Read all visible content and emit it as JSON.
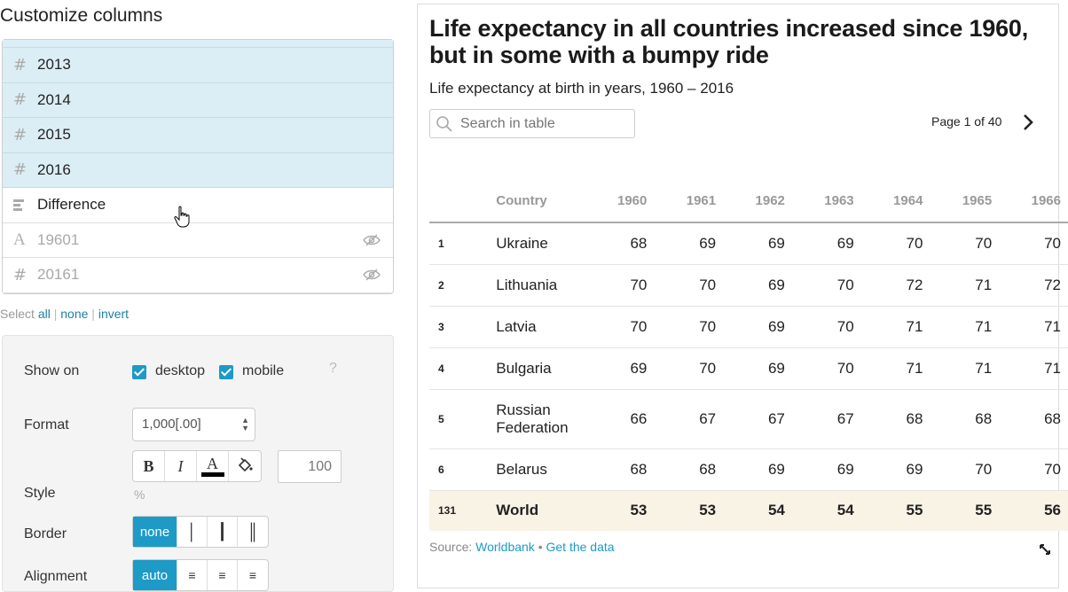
{
  "left_panel": {
    "title": "Customize columns",
    "columns": [
      {
        "icon": "hash-icon",
        "label": "2013",
        "selected": true,
        "hidden": false
      },
      {
        "icon": "hash-icon",
        "label": "2014",
        "selected": true,
        "hidden": false
      },
      {
        "icon": "hash-icon",
        "label": "2015",
        "selected": true,
        "hidden": false
      },
      {
        "icon": "hash-icon",
        "label": "2016",
        "selected": true,
        "hidden": false
      },
      {
        "icon": "bars-icon",
        "label": "Difference",
        "selected": false,
        "hidden": false
      },
      {
        "icon": "text-icon",
        "label": "19601",
        "selected": false,
        "hidden": true
      },
      {
        "icon": "hash-icon",
        "label": "20161",
        "selected": false,
        "hidden": true
      }
    ],
    "select": {
      "prefix": "Select",
      "all": "all",
      "none": "none",
      "invert": "invert",
      "separator": "|"
    },
    "settings": {
      "show_on_label": "Show on",
      "desktop_label": "desktop",
      "mobile_label": "mobile",
      "desktop_checked": true,
      "mobile_checked": true,
      "help": "?",
      "format_label": "Format",
      "format_value": "1,000[.00]",
      "style_buttons": [
        "B",
        "I",
        "A",
        "fill"
      ],
      "style_value": "100",
      "style_label": "Style",
      "style_unit": "%",
      "border_label": "Border",
      "border_options": [
        "none",
        "│",
        "┃",
        "║"
      ],
      "alignment_label": "Alignment",
      "alignment_options": [
        "auto",
        "left",
        "center",
        "right"
      ]
    }
  },
  "chart": {
    "title": "Life expectancy in all countries increased since 1960, but in some with a bumpy ride",
    "subtitle": "Life expectancy at birth in years, 1960 – 2016",
    "search_placeholder": "Search in table",
    "pager": "Page 1 of 40",
    "columns": [
      "",
      "Country",
      "1960",
      "1961",
      "1962",
      "1963",
      "1964",
      "1965",
      "1966"
    ],
    "rows": [
      {
        "rank": "1",
        "country": "Ukraine",
        "values": [
          "68",
          "69",
          "69",
          "69",
          "70",
          "70",
          "70"
        ]
      },
      {
        "rank": "2",
        "country": "Lithuania",
        "values": [
          "70",
          "70",
          "69",
          "70",
          "72",
          "71",
          "72"
        ]
      },
      {
        "rank": "3",
        "country": "Latvia",
        "values": [
          "70",
          "70",
          "69",
          "70",
          "71",
          "71",
          "71"
        ]
      },
      {
        "rank": "4",
        "country": "Bulgaria",
        "values": [
          "69",
          "70",
          "69",
          "70",
          "71",
          "71",
          "71"
        ]
      },
      {
        "rank": "5",
        "country": "Russian Federation",
        "values": [
          "66",
          "67",
          "67",
          "67",
          "68",
          "68",
          "68"
        ]
      },
      {
        "rank": "6",
        "country": "Belarus",
        "values": [
          "68",
          "68",
          "69",
          "69",
          "69",
          "70",
          "70"
        ]
      }
    ],
    "highlight_row": {
      "rank": "131",
      "country": "World",
      "values": [
        "53",
        "53",
        "54",
        "54",
        "55",
        "55",
        "56"
      ]
    },
    "source_prefix": "Source:",
    "source_link": "Worldbank",
    "source_sep": "•",
    "data_link": "Get the data"
  },
  "colors": {
    "accent": "#1d9ac6",
    "selected_row": "#dbeef5",
    "highlight": "#f9f3e6",
    "link": "#1d81a2"
  }
}
